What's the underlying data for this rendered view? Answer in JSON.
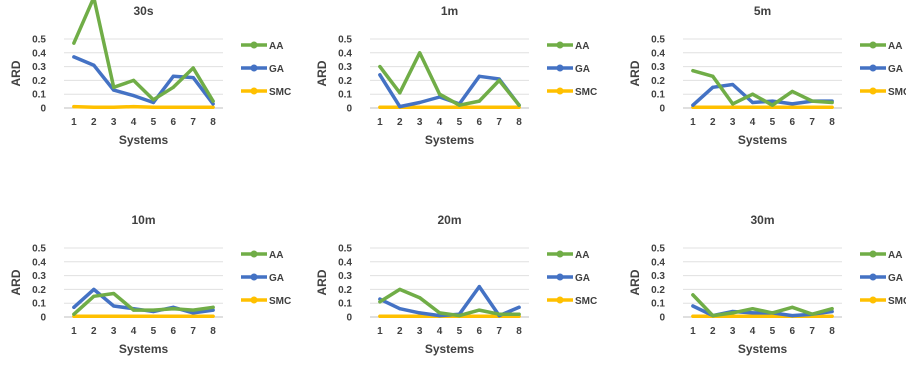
{
  "chart_data": [
    {
      "type": "line",
      "title": "30s",
      "xlabel": "Systems",
      "ylabel": "ARD",
      "categories": [
        "1",
        "2",
        "3",
        "4",
        "5",
        "6",
        "7",
        "8"
      ],
      "ylim": [
        0,
        0.5
      ],
      "yticks": [
        "0",
        "0.1",
        "0.2",
        "0.3",
        "0.4",
        "0.5"
      ],
      "series": [
        {
          "name": "AA",
          "color": "#70ad47",
          "values": [
            0.47,
            0.8,
            0.15,
            0.2,
            0.06,
            0.15,
            0.29,
            0.05
          ]
        },
        {
          "name": "GA",
          "color": "#4472c4",
          "values": [
            0.37,
            0.31,
            0.13,
            0.09,
            0.04,
            0.23,
            0.22,
            0.03
          ]
        },
        {
          "name": "SMC",
          "color": "#ffc000",
          "values": [
            0.01,
            0.005,
            0.005,
            0.01,
            0.005,
            0.005,
            0.005,
            0.005
          ]
        }
      ],
      "legend_position": "right"
    },
    {
      "type": "line",
      "title": "1m",
      "xlabel": "Systems",
      "ylabel": "ARD",
      "categories": [
        "1",
        "2",
        "3",
        "4",
        "5",
        "6",
        "7",
        "8"
      ],
      "ylim": [
        0,
        0.5
      ],
      "yticks": [
        "0",
        "0.1",
        "0.2",
        "0.3",
        "0.4",
        "0.5"
      ],
      "series": [
        {
          "name": "AA",
          "color": "#70ad47",
          "values": [
            0.3,
            0.11,
            0.4,
            0.1,
            0.02,
            0.05,
            0.2,
            0.02
          ]
        },
        {
          "name": "GA",
          "color": "#4472c4",
          "values": [
            0.24,
            0.01,
            0.04,
            0.08,
            0.03,
            0.23,
            0.21,
            0.02
          ]
        },
        {
          "name": "SMC",
          "color": "#ffc000",
          "values": [
            0.005,
            0.005,
            0.005,
            0.005,
            0.005,
            0.005,
            0.005,
            0.005
          ]
        }
      ],
      "legend_position": "right"
    },
    {
      "type": "line",
      "title": "5m",
      "xlabel": "Systems",
      "ylabel": "ARD",
      "categories": [
        "1",
        "2",
        "3",
        "4",
        "5",
        "6",
        "7",
        "8"
      ],
      "ylim": [
        0,
        0.5
      ],
      "yticks": [
        "0",
        "0.1",
        "0.2",
        "0.3",
        "0.4",
        "0.5"
      ],
      "series": [
        {
          "name": "AA",
          "color": "#70ad47",
          "values": [
            0.27,
            0.23,
            0.03,
            0.1,
            0.02,
            0.12,
            0.05,
            0.04
          ]
        },
        {
          "name": "GA",
          "color": "#4472c4",
          "values": [
            0.02,
            0.15,
            0.17,
            0.04,
            0.05,
            0.03,
            0.05,
            0.05
          ]
        },
        {
          "name": "SMC",
          "color": "#ffc000",
          "values": [
            0.005,
            0.005,
            0.005,
            0.005,
            0.005,
            0.005,
            0.005,
            0.005
          ]
        }
      ],
      "legend_position": "right"
    },
    {
      "type": "line",
      "title": "10m",
      "xlabel": "Systems",
      "ylabel": "ARD",
      "categories": [
        "1",
        "2",
        "3",
        "4",
        "5",
        "6",
        "7",
        "8"
      ],
      "ylim": [
        0,
        0.5
      ],
      "yticks": [
        "0",
        "0.1",
        "0.2",
        "0.3",
        "0.4",
        "0.5"
      ],
      "series": [
        {
          "name": "AA",
          "color": "#70ad47",
          "values": [
            0.02,
            0.15,
            0.17,
            0.05,
            0.05,
            0.06,
            0.05,
            0.07
          ]
        },
        {
          "name": "GA",
          "color": "#4472c4",
          "values": [
            0.07,
            0.2,
            0.08,
            0.06,
            0.04,
            0.07,
            0.03,
            0.05
          ]
        },
        {
          "name": "SMC",
          "color": "#ffc000",
          "values": [
            0.005,
            0.005,
            0.005,
            0.005,
            0.005,
            0.005,
            0.005,
            0.005
          ]
        }
      ],
      "legend_position": "right"
    },
    {
      "type": "line",
      "title": "20m",
      "xlabel": "Systems",
      "ylabel": "ARD",
      "categories": [
        "1",
        "2",
        "3",
        "4",
        "5",
        "6",
        "7",
        "8"
      ],
      "ylim": [
        0,
        0.5
      ],
      "yticks": [
        "0",
        "0.1",
        "0.2",
        "0.3",
        "0.4",
        "0.5"
      ],
      "series": [
        {
          "name": "AA",
          "color": "#70ad47",
          "values": [
            0.11,
            0.2,
            0.14,
            0.03,
            0.01,
            0.05,
            0.02,
            0.02
          ]
        },
        {
          "name": "GA",
          "color": "#4472c4",
          "values": [
            0.13,
            0.06,
            0.03,
            0.01,
            0.02,
            0.22,
            0.01,
            0.07
          ]
        },
        {
          "name": "SMC",
          "color": "#ffc000",
          "values": [
            0.005,
            0.005,
            0.005,
            0.005,
            0.005,
            0.005,
            0.005,
            0.005
          ]
        }
      ],
      "legend_position": "right"
    },
    {
      "type": "line",
      "title": "30m",
      "xlabel": "Systems",
      "ylabel": "ARD",
      "categories": [
        "1",
        "2",
        "3",
        "4",
        "5",
        "6",
        "7",
        "8"
      ],
      "ylim": [
        0,
        0.5
      ],
      "yticks": [
        "0",
        "0.1",
        "0.2",
        "0.3",
        "0.4",
        "0.5"
      ],
      "series": [
        {
          "name": "AA",
          "color": "#70ad47",
          "values": [
            0.16,
            0.01,
            0.03,
            0.06,
            0.03,
            0.07,
            0.02,
            0.06
          ]
        },
        {
          "name": "GA",
          "color": "#4472c4",
          "values": [
            0.08,
            0.01,
            0.04,
            0.03,
            0.03,
            0.01,
            0.02,
            0.04
          ]
        },
        {
          "name": "SMC",
          "color": "#ffc000",
          "values": [
            0.005,
            0.005,
            0.005,
            0.005,
            0.005,
            0.005,
            0.005,
            0.005
          ]
        }
      ],
      "legend_position": "right"
    }
  ]
}
